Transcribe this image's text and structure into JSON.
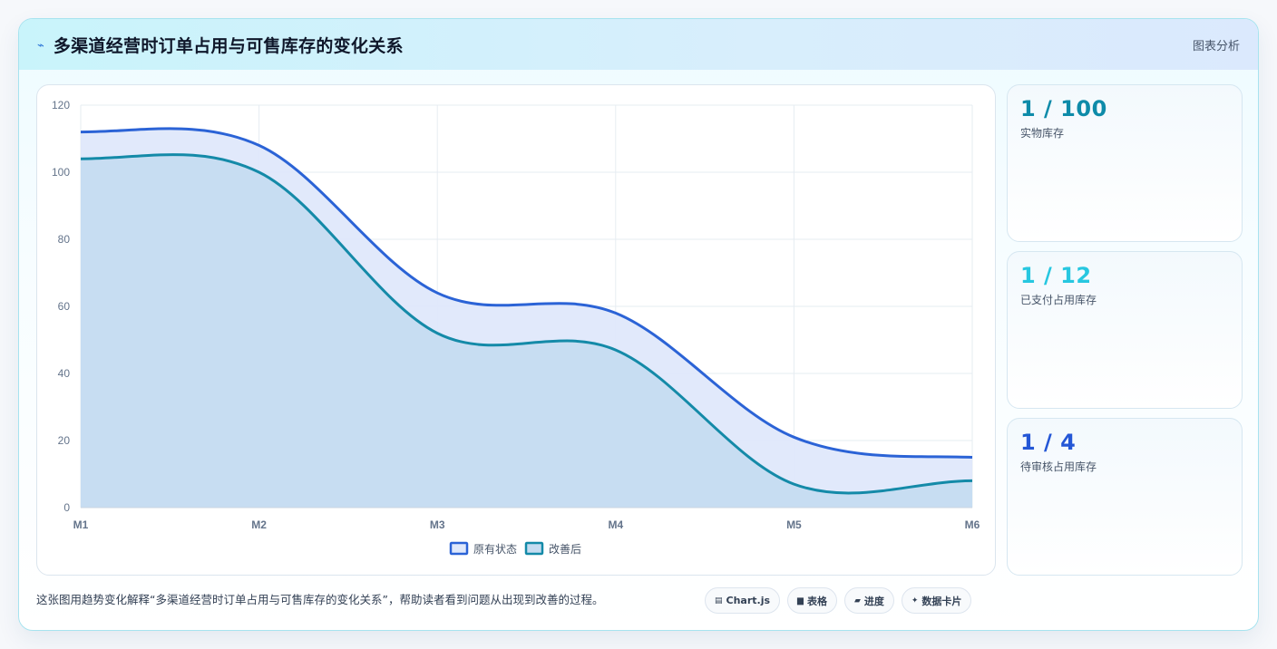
{
  "header": {
    "title_icon": "lightning-icon",
    "title": "多渠道经营时订单占用与可售库存的变化关系",
    "link": "图表分析"
  },
  "chart_data": {
    "type": "area",
    "categories": [
      "M1",
      "M2",
      "M3",
      "M4",
      "M5",
      "M6"
    ],
    "ylim": [
      0,
      120
    ],
    "yticks": [
      0,
      20,
      40,
      60,
      80,
      100,
      120
    ],
    "grid": true,
    "legend_position": "bottom",
    "series": [
      {
        "name": "原有状态",
        "values": [
          112,
          108,
          64,
          58,
          21,
          15
        ],
        "color": "#2b63d6",
        "fill": "#dfe8fb"
      },
      {
        "name": "改善后",
        "values": [
          104,
          100,
          52,
          47,
          7,
          8
        ],
        "color": "#148aa8",
        "fill": "#c5dcf1"
      }
    ]
  },
  "stats": [
    {
      "value": "1 / 100",
      "label": "实物库存",
      "color": "#0e8ba9"
    },
    {
      "value": "1 / 12",
      "label": "已支付占用库存",
      "color": "#27c7e0"
    },
    {
      "value": "1 / 4",
      "label": "待审核占用库存",
      "color": "#2457d6"
    }
  ],
  "footer": {
    "description": "这张图用趋势变化解释“多渠道经营时订单占用与可售库存的变化关系”，帮助读者看到问题从出现到改善的过程。",
    "tags": [
      {
        "icon": "chart-icon",
        "glyph": "▤",
        "label": "Chart.js"
      },
      {
        "icon": "table-icon",
        "glyph": "▆",
        "label": "表格"
      },
      {
        "icon": "progress-icon",
        "glyph": "▰",
        "label": "进度"
      },
      {
        "icon": "sparkle-icon",
        "glyph": "✦",
        "label": "数据卡片"
      }
    ]
  }
}
